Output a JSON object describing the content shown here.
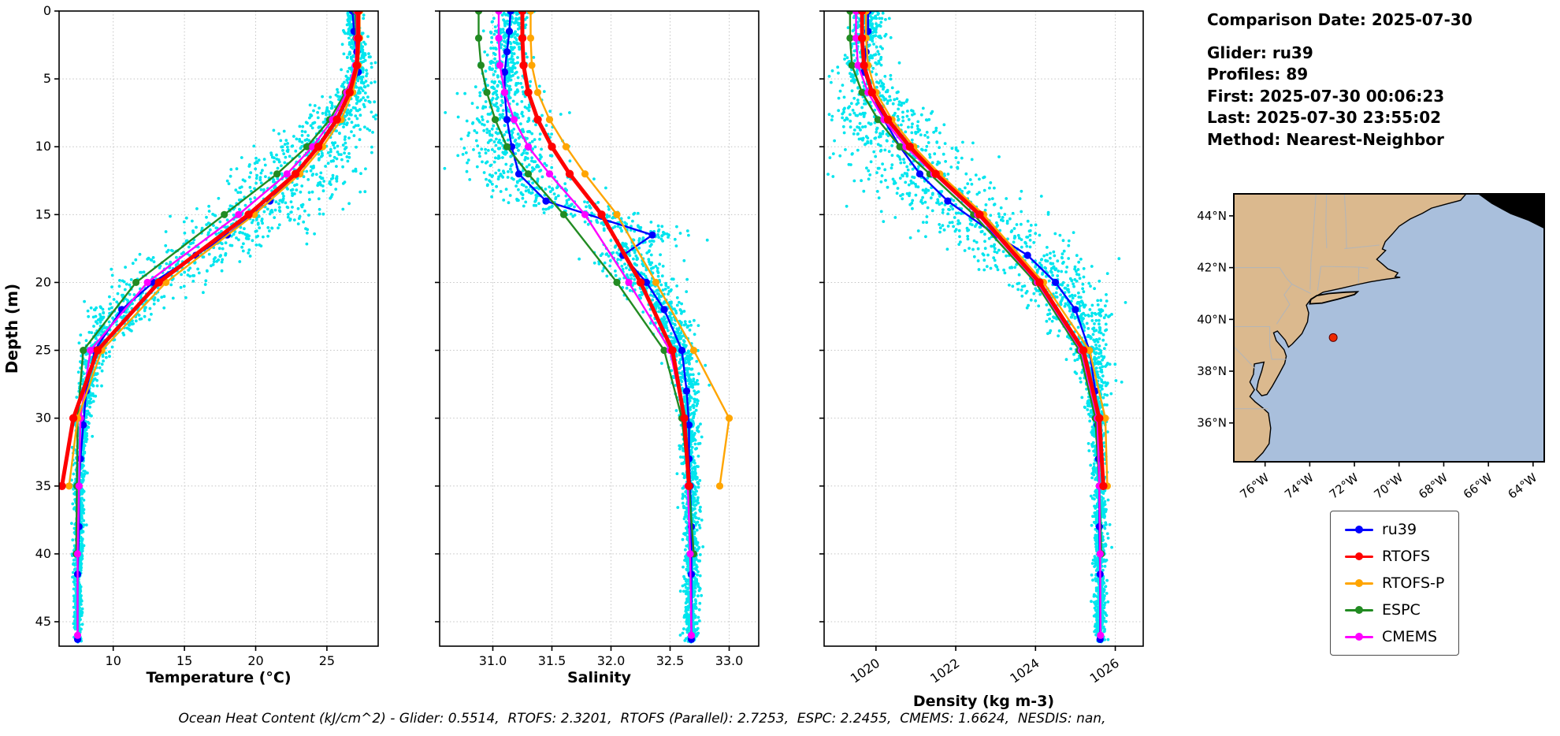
{
  "info": {
    "comparison_date": "Comparison Date: 2025-07-30",
    "glider": "Glider: ru39",
    "profiles": "Profiles: 89",
    "first": "First: 2025-07-30 00:06:23",
    "last": "Last: 2025-07-30 23:55:02",
    "method": "Method: Nearest-Neighbor"
  },
  "caption": "Ocean Heat Content (kJ/cm^2) - Glider: 0.5514,  RTOFS: 2.3201,  RTOFS (Parallel): 2.7253,  ESPC: 2.2455,  CMEMS: 1.6624,  NESDIS: nan,",
  "legend": {
    "entries": [
      {
        "label": "ru39",
        "color": "#0000ff"
      },
      {
        "label": "RTOFS",
        "color": "#ff0000"
      },
      {
        "label": "RTOFS-P",
        "color": "#ffa500"
      },
      {
        "label": "ESPC",
        "color": "#228b22"
      },
      {
        "label": "CMEMS",
        "color": "#ff00ff"
      }
    ]
  },
  "chart_data": {
    "type": "scatter",
    "ylabel": "Depth (m)",
    "ylim": [
      0,
      46.8
    ],
    "yticks": [
      0,
      5,
      10,
      15,
      20,
      25,
      30,
      35,
      40,
      45
    ],
    "grid": true,
    "panels": [
      {
        "variable": "temperature",
        "xlabel": "Temperature (°C)",
        "xlim": [
          6.2,
          28.6
        ],
        "xticks": [
          10,
          15,
          20,
          25
        ],
        "xtick_labels": [
          "10",
          "15",
          "20",
          "25"
        ],
        "rotate_xticks": false
      },
      {
        "variable": "salinity",
        "xlabel": "Salinity",
        "xlim": [
          30.55,
          33.25
        ],
        "xticks": [
          31.0,
          31.5,
          32.0,
          32.5,
          33.0
        ],
        "xtick_labels": [
          "31.0",
          "31.5",
          "32.0",
          "32.5",
          "33.0"
        ],
        "rotate_xticks": false
      },
      {
        "variable": "density",
        "xlabel": "Density (kg m-3)",
        "xlim": [
          1018.7,
          1026.7
        ],
        "xticks": [
          1020,
          1022,
          1024,
          1026
        ],
        "xtick_labels": [
          "1020",
          "1022",
          "1024",
          "1026"
        ],
        "rotate_xticks": true
      }
    ],
    "draw_order": [
      "ru39",
      "ESPC",
      "CMEMS",
      "RTOFS-P",
      "RTOFS"
    ],
    "series": [
      {
        "name": "ru39",
        "color": "#0000ff",
        "lw": 2.4,
        "marker": 4.6,
        "depths": [
          0,
          1.5,
          3,
          4.5,
          6,
          8,
          10,
          12,
          14,
          16.5,
          18,
          20,
          22,
          25,
          28,
          30.5,
          33,
          35,
          38,
          41.5,
          46.3
        ],
        "temperature": [
          26.8,
          26.9,
          27.1,
          27.2,
          26.6,
          25.6,
          24.3,
          22.8,
          21.0,
          18.0,
          15.8,
          12.8,
          10.6,
          8.7,
          8.1,
          7.9,
          7.7,
          7.6,
          7.6,
          7.5,
          7.5
        ],
        "salinity": [
          31.15,
          31.14,
          31.12,
          31.1,
          31.1,
          31.12,
          31.16,
          31.22,
          31.45,
          32.35,
          32.1,
          32.3,
          32.45,
          32.6,
          32.64,
          32.66,
          32.66,
          32.67,
          32.68,
          32.68,
          32.68
        ],
        "density": [
          1019.8,
          1019.8,
          1019.75,
          1019.7,
          1019.9,
          1020.2,
          1020.6,
          1021.1,
          1021.8,
          1023.0,
          1023.8,
          1024.5,
          1025.0,
          1025.35,
          1025.5,
          1025.55,
          1025.58,
          1025.6,
          1025.6,
          1025.62,
          1025.62
        ]
      },
      {
        "name": "RTOFS",
        "color": "#ff0000",
        "lw": 5,
        "marker": 5.2,
        "depths": [
          0,
          2,
          4,
          6,
          8,
          10,
          12,
          15,
          20,
          25,
          30,
          35
        ],
        "temperature": [
          27.2,
          27.2,
          27.1,
          26.6,
          25.7,
          24.4,
          22.8,
          19.5,
          13.2,
          8.9,
          7.2,
          6.4
        ],
        "salinity": [
          31.25,
          31.25,
          31.26,
          31.3,
          31.38,
          31.5,
          31.65,
          31.92,
          32.25,
          32.52,
          32.62,
          32.66
        ],
        "density": [
          1019.65,
          1019.65,
          1019.7,
          1019.9,
          1020.3,
          1020.85,
          1021.5,
          1022.6,
          1024.1,
          1025.2,
          1025.6,
          1025.7
        ]
      },
      {
        "name": "RTOFS-P",
        "color": "#ffa500",
        "lw": 2.4,
        "marker": 4.6,
        "depths": [
          0,
          2,
          4,
          6,
          8,
          10,
          12,
          15,
          20,
          25,
          30,
          35
        ],
        "temperature": [
          27.3,
          27.3,
          27.2,
          26.8,
          26.0,
          24.7,
          23.1,
          19.9,
          13.7,
          9.2,
          7.5,
          6.9
        ],
        "salinity": [
          31.32,
          31.32,
          31.33,
          31.38,
          31.48,
          31.62,
          31.78,
          32.05,
          32.38,
          32.7,
          33.0,
          32.92
        ],
        "density": [
          1019.75,
          1019.75,
          1019.8,
          1020.0,
          1020.4,
          1020.95,
          1021.6,
          1022.7,
          1024.2,
          1025.35,
          1025.75,
          1025.8
        ]
      },
      {
        "name": "ESPC",
        "color": "#228b22",
        "lw": 2.4,
        "marker": 4.6,
        "depths": [
          0,
          2,
          4,
          6,
          8,
          10,
          12,
          15,
          20,
          25,
          30,
          35,
          40
        ],
        "temperature": [
          27.0,
          27.05,
          27.2,
          26.3,
          25.2,
          23.6,
          21.5,
          17.8,
          11.6,
          7.9,
          7.5,
          7.45,
          7.4
        ],
        "salinity": [
          30.88,
          30.88,
          30.9,
          30.95,
          31.02,
          31.12,
          31.3,
          31.6,
          32.05,
          32.45,
          32.6,
          32.66,
          32.7
        ],
        "density": [
          1019.35,
          1019.35,
          1019.4,
          1019.65,
          1020.05,
          1020.6,
          1021.35,
          1022.45,
          1024.0,
          1025.1,
          1025.5,
          1025.6,
          1025.65
        ]
      },
      {
        "name": "CMEMS",
        "color": "#ff00ff",
        "lw": 2.4,
        "marker": 4.6,
        "depths": [
          0,
          2,
          4,
          6,
          8,
          10,
          12,
          15,
          20,
          25,
          30,
          35,
          40,
          46
        ],
        "temperature": [
          27.1,
          27.1,
          27.0,
          26.4,
          25.4,
          24.0,
          22.2,
          18.8,
          12.4,
          8.4,
          7.7,
          7.6,
          7.5,
          7.5
        ],
        "salinity": [
          31.05,
          31.05,
          31.06,
          31.1,
          31.18,
          31.3,
          31.48,
          31.78,
          32.15,
          32.5,
          32.62,
          32.65,
          32.67,
          32.68
        ],
        "density": [
          1019.5,
          1019.5,
          1019.55,
          1019.8,
          1020.2,
          1020.75,
          1021.45,
          1022.55,
          1024.05,
          1025.15,
          1025.55,
          1025.6,
          1025.62,
          1025.63
        ]
      }
    ],
    "scatter": {
      "name": "glider-raw-observations",
      "color": "#00e5ee",
      "count": 2400,
      "base_series": "ru39",
      "spread": {
        "temperature": {
          "depths": [
            0,
            5,
            8,
            12,
            18,
            25,
            30,
            47
          ],
          "sd": [
            0.25,
            0.5,
            1.6,
            2.4,
            2.0,
            0.5,
            0.22,
            0.12
          ]
        },
        "salinity": {
          "depths": [
            0,
            5,
            8,
            12,
            18,
            25,
            30,
            47
          ],
          "sd": [
            0.07,
            0.1,
            0.18,
            0.22,
            0.15,
            0.06,
            0.04,
            0.03
          ]
        },
        "density": {
          "depths": [
            0,
            5,
            8,
            12,
            18,
            25,
            30,
            47
          ],
          "sd": [
            0.2,
            0.3,
            0.7,
            0.95,
            0.75,
            0.25,
            0.1,
            0.06
          ]
        }
      }
    }
  },
  "map": {
    "extent": {
      "lon": [
        -77.4,
        -63.5
      ],
      "lat": [
        34.5,
        44.85
      ]
    },
    "colors": {
      "ocean": "#a9bfdc",
      "land": "#dbb98e",
      "borders": "#b5b5b5"
    },
    "marker": {
      "lon": -72.95,
      "lat": 39.3,
      "color": "#ee2a00"
    },
    "yticks": [
      {
        "value": 44,
        "label": "44°N"
      },
      {
        "value": 42,
        "label": "42°N"
      },
      {
        "value": 40,
        "label": "40°N"
      },
      {
        "value": 38,
        "label": "38°N"
      },
      {
        "value": 36,
        "label": "36°N"
      }
    ],
    "xticks": [
      {
        "value": -76,
        "label": "76°W"
      },
      {
        "value": -74,
        "label": "74°W"
      },
      {
        "value": -72,
        "label": "72°W"
      },
      {
        "value": -70,
        "label": "70°W"
      },
      {
        "value": -68,
        "label": "68°W"
      },
      {
        "value": -66,
        "label": "66°W"
      },
      {
        "value": -64,
        "label": "64°W"
      }
    ],
    "land": {
      "mainland": [
        [
          -77.4,
          44.85
        ],
        [
          -67.0,
          44.85
        ],
        [
          -67.25,
          44.6
        ],
        [
          -67.9,
          44.45
        ],
        [
          -68.55,
          44.3
        ],
        [
          -68.95,
          44.1
        ],
        [
          -69.5,
          43.88
        ],
        [
          -70.0,
          43.6
        ],
        [
          -70.3,
          43.3
        ],
        [
          -70.62,
          43.0
        ],
        [
          -70.75,
          42.72
        ],
        [
          -70.6,
          42.66
        ],
        [
          -71.0,
          42.32
        ],
        [
          -70.72,
          42.12
        ],
        [
          -70.5,
          41.95
        ],
        [
          -70.05,
          41.8
        ],
        [
          -70.18,
          41.65
        ],
        [
          -69.95,
          41.62
        ],
        [
          -70.6,
          41.55
        ],
        [
          -71.3,
          41.45
        ],
        [
          -71.85,
          41.35
        ],
        [
          -72.6,
          41.2
        ],
        [
          -73.4,
          41.05
        ],
        [
          -73.95,
          40.78
        ],
        [
          -74.15,
          40.55
        ],
        [
          -74.05,
          40.25
        ],
        [
          -74.1,
          39.9
        ],
        [
          -74.35,
          39.45
        ],
        [
          -74.78,
          39.05
        ],
        [
          -74.95,
          38.93
        ],
        [
          -75.1,
          39.2
        ],
        [
          -75.45,
          39.55
        ],
        [
          -75.62,
          39.48
        ],
        [
          -75.5,
          39.18
        ],
        [
          -75.15,
          38.83
        ],
        [
          -75.05,
          38.58
        ],
        [
          -75.12,
          38.3
        ],
        [
          -75.38,
          37.88
        ],
        [
          -75.68,
          37.42
        ],
        [
          -75.92,
          37.1
        ],
        [
          -76.15,
          37.05
        ],
        [
          -76.38,
          37.28
        ],
        [
          -76.3,
          37.62
        ],
        [
          -76.15,
          38.0
        ],
        [
          -76.05,
          38.35
        ],
        [
          -76.48,
          38.28
        ],
        [
          -76.52,
          37.88
        ],
        [
          -76.68,
          37.58
        ],
        [
          -76.48,
          37.28
        ],
        [
          -76.68,
          37.02
        ],
        [
          -76.45,
          36.82
        ],
        [
          -76.1,
          36.58
        ],
        [
          -75.85,
          36.38
        ],
        [
          -75.75,
          35.8
        ],
        [
          -75.82,
          35.2
        ],
        [
          -76.1,
          34.85
        ],
        [
          -76.5,
          34.5
        ],
        [
          -77.4,
          34.5
        ]
      ],
      "long_island": [
        [
          -74.0,
          40.6
        ],
        [
          -73.45,
          40.63
        ],
        [
          -72.75,
          40.78
        ],
        [
          -72.0,
          40.96
        ],
        [
          -71.86,
          41.07
        ],
        [
          -72.4,
          41.05
        ],
        [
          -73.15,
          41.0
        ],
        [
          -73.68,
          40.92
        ],
        [
          -73.95,
          40.77
        ]
      ],
      "nova_scotia": [
        [
          -66.45,
          44.85
        ],
        [
          -65.85,
          44.48
        ],
        [
          -65.0,
          44.08
        ],
        [
          -64.2,
          43.82
        ],
        [
          -63.5,
          43.52
        ],
        [
          -63.5,
          44.85
        ]
      ]
    },
    "borders": [
      [
        [
          -77.4,
          42.0
        ],
        [
          -75.35,
          42.0
        ],
        [
          -75.05,
          41.6
        ],
        [
          -74.8,
          41.36
        ],
        [
          -75.15,
          40.95
        ],
        [
          -74.9,
          40.58
        ],
        [
          -75.2,
          40.2
        ],
        [
          -75.48,
          39.82
        ]
      ],
      [
        [
          -74.8,
          41.36
        ],
        [
          -73.95,
          41.0
        ]
      ],
      [
        [
          -77.4,
          39.72
        ],
        [
          -75.79,
          39.72
        ],
        [
          -75.79,
          39.0
        ],
        [
          -75.7,
          38.46
        ],
        [
          -75.06,
          38.46
        ]
      ],
      [
        [
          -73.5,
          42.05
        ],
        [
          -71.8,
          42.02
        ],
        [
          -71.38,
          41.98
        ]
      ],
      [
        [
          -73.5,
          42.05
        ],
        [
          -73.65,
          41.1
        ]
      ],
      [
        [
          -71.8,
          42.02
        ],
        [
          -71.82,
          41.4
        ]
      ],
      [
        [
          -72.45,
          42.73
        ],
        [
          -70.88,
          42.87
        ]
      ],
      [
        [
          -72.45,
          44.85
        ],
        [
          -72.38,
          43.8
        ],
        [
          -72.35,
          42.73
        ]
      ],
      [
        [
          -73.25,
          44.85
        ],
        [
          -73.28,
          43.6
        ],
        [
          -73.24,
          42.75
        ]
      ],
      [
        [
          -73.72,
          44.85
        ],
        [
          -73.85,
          43.2
        ],
        [
          -73.95,
          42.2
        ],
        [
          -73.98,
          41.15
        ]
      ],
      [
        [
          -77.4,
          36.55
        ],
        [
          -75.87,
          36.55
        ]
      ],
      [
        [
          -77.4,
          38.95
        ],
        [
          -77.0,
          38.6
        ],
        [
          -76.45,
          38.1
        ]
      ]
    ]
  }
}
